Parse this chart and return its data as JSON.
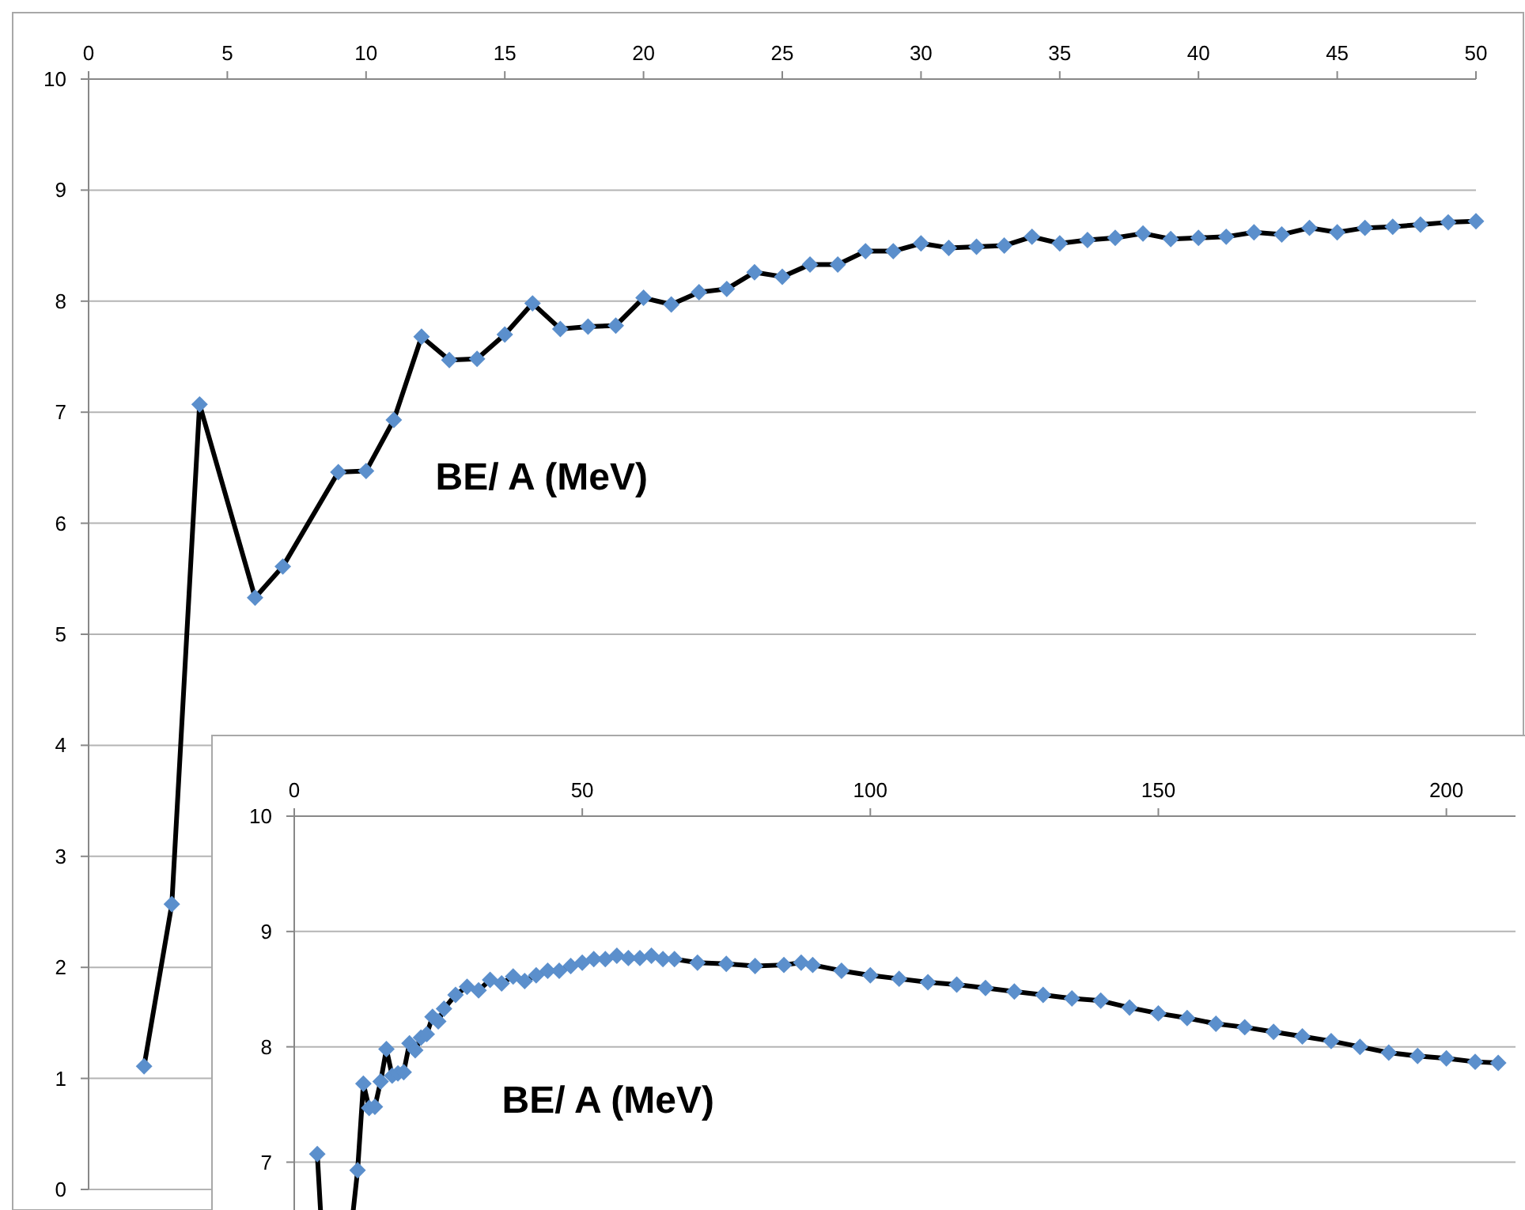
{
  "chart_data": [
    {
      "type": "line",
      "annotations": [
        "BE/ A (MeV)"
      ],
      "x": [
        2,
        3,
        4,
        6,
        7,
        9,
        10,
        11,
        12,
        13,
        14,
        15,
        16,
        17,
        18,
        19,
        20,
        21,
        22,
        23,
        24,
        25,
        26,
        27,
        28,
        29,
        30,
        31,
        32,
        33,
        34,
        35,
        36,
        37,
        38,
        39,
        40,
        41,
        42,
        43,
        44,
        45,
        46,
        47,
        48,
        49,
        50
      ],
      "series": [
        {
          "color": "#000000",
          "values": [
            1.11,
            2.57,
            7.07,
            5.33,
            5.61,
            6.46,
            6.47,
            6.93,
            7.68,
            7.47,
            7.48,
            7.7,
            7.98,
            7.75,
            7.77,
            7.78,
            8.03,
            7.97,
            8.08,
            8.11,
            8.26,
            8.22,
            8.33,
            8.33,
            8.45,
            8.45,
            8.52,
            8.48,
            8.49,
            8.5,
            8.58,
            8.52,
            8.55,
            8.57,
            8.61,
            8.56,
            8.57,
            8.58,
            8.62,
            8.6,
            8.66,
            8.62,
            8.66,
            8.67,
            8.69,
            8.71,
            8.72
          ]
        }
      ],
      "xlim": [
        0,
        50
      ],
      "xticks": [
        0,
        5,
        10,
        15,
        20,
        25,
        30,
        35,
        40,
        45,
        50
      ],
      "ylim": [
        0,
        10
      ],
      "yticks": [
        0,
        1,
        2,
        3,
        4,
        5,
        6,
        7,
        8,
        9,
        10
      ],
      "grid": "y",
      "marker": "diamond",
      "line_style": "solid"
    },
    {
      "type": "line",
      "annotations": [
        "BE/ A (MeV)"
      ],
      "x": [
        4,
        6,
        7,
        9,
        10,
        11,
        12,
        13,
        14,
        15,
        16,
        17,
        18,
        19,
        20,
        21,
        22,
        23,
        24,
        25,
        26,
        28,
        30,
        32,
        34,
        36,
        38,
        40,
        42,
        44,
        46,
        48,
        50,
        52,
        54,
        56,
        58,
        60,
        62,
        64,
        66,
        70,
        75,
        80,
        85,
        88,
        90,
        95,
        100,
        105,
        110,
        115,
        120,
        125,
        130,
        135,
        140,
        145,
        150,
        155,
        160,
        165,
        170,
        175,
        180,
        185,
        190,
        195,
        200,
        205,
        209
      ],
      "series": [
        {
          "color": "#000000",
          "values": [
            7.07,
            5.33,
            5.61,
            6.46,
            6.47,
            6.93,
            7.68,
            7.47,
            7.48,
            7.7,
            7.98,
            7.75,
            7.77,
            7.78,
            8.03,
            7.97,
            8.08,
            8.11,
            8.26,
            8.22,
            8.33,
            8.45,
            8.52,
            8.49,
            8.58,
            8.55,
            8.61,
            8.57,
            8.62,
            8.66,
            8.66,
            8.7,
            8.73,
            8.76,
            8.76,
            8.79,
            8.77,
            8.77,
            8.79,
            8.76,
            8.76,
            8.73,
            8.72,
            8.7,
            8.71,
            8.73,
            8.71,
            8.66,
            8.62,
            8.59,
            8.56,
            8.54,
            8.51,
            8.48,
            8.45,
            8.42,
            8.4,
            8.34,
            8.29,
            8.25,
            8.2,
            8.17,
            8.13,
            8.09,
            8.05,
            8.0,
            7.95,
            7.92,
            7.9,
            7.87,
            7.86
          ]
        }
      ],
      "xlim": [
        0,
        212
      ],
      "xticks": [
        0,
        50,
        100,
        150,
        200
      ],
      "ylim": [
        5.2,
        10
      ],
      "yticks": [
        7,
        8,
        9,
        10
      ],
      "grid": "y",
      "marker": "diamond",
      "line_style": "solid"
    }
  ]
}
